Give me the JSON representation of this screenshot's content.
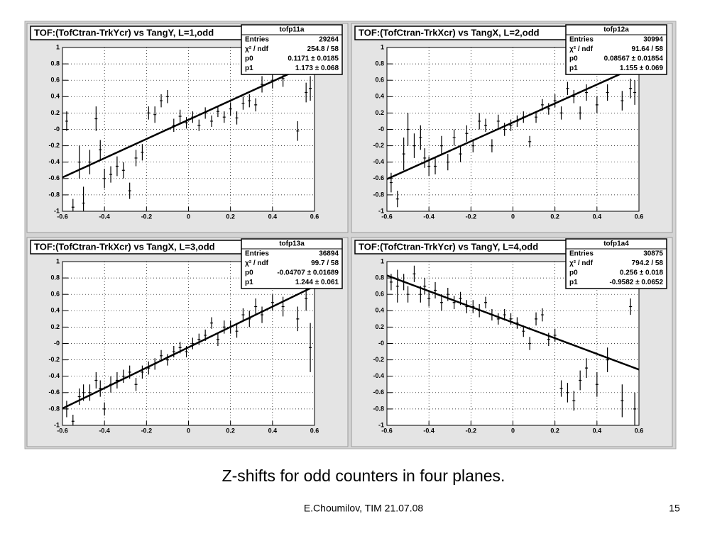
{
  "chart_data": [
    {
      "type": "scatter",
      "title": "TOF:(TofCtran-TrkYcr) vs TangY, L=1,odd",
      "stats_name": "tofp11a",
      "stats_labels": [
        "Entries",
        "χ² / ndf",
        "p0",
        "p1"
      ],
      "entries": 29264,
      "chi2": "254.8 / 58",
      "p0": {
        "value": 0.1171,
        "label": "0.1171 ± 0.0185"
      },
      "p1": {
        "value": 1.173,
        "label": "1.173 ± 0.068"
      },
      "xlim": [
        -0.6,
        0.6
      ],
      "ylim": [
        -1,
        1
      ],
      "grid": true,
      "color": "#000000",
      "xticks": [
        -0.6,
        -0.4,
        -0.2,
        0,
        0.2,
        0.4,
        0.6
      ],
      "yticks": [
        -1,
        -0.8,
        -0.6,
        -0.4,
        -0.2,
        {
          "value": 0,
          "label": "-0"
        },
        0.2,
        0.4,
        0.6,
        0.8,
        1
      ],
      "x": [
        -0.58,
        -0.55,
        -0.52,
        -0.5,
        -0.47,
        -0.44,
        -0.42,
        -0.4,
        -0.37,
        -0.34,
        -0.31,
        -0.28,
        -0.25,
        -0.22,
        -0.19,
        -0.16,
        -0.13,
        -0.1,
        -0.07,
        -0.04,
        -0.01,
        0.02,
        0.05,
        0.08,
        0.11,
        0.14,
        0.17,
        0.2,
        0.23,
        0.26,
        0.29,
        0.32,
        0.35,
        0.4,
        0.45,
        0.52,
        0.56,
        0.58
      ],
      "values": [
        0.1,
        -0.95,
        -0.4,
        -0.9,
        -0.4,
        0.13,
        -0.25,
        -0.6,
        -0.55,
        -0.45,
        -0.5,
        -0.75,
        -0.35,
        -0.28,
        0.2,
        0.18,
        0.35,
        0.4,
        0.05,
        0.16,
        0.08,
        0.15,
        0.05,
        0.2,
        0.1,
        0.22,
        0.15,
        0.25,
        0.14,
        0.32,
        0.35,
        0.3,
        0.55,
        0.6,
        0.62,
        -0.02,
        0.45,
        0.5
      ],
      "errors": [
        0.12,
        0.1,
        0.2,
        0.2,
        0.15,
        0.15,
        0.12,
        0.12,
        0.1,
        0.12,
        0.1,
        0.1,
        0.1,
        0.1,
        0.08,
        0.1,
        0.08,
        0.08,
        0.08,
        0.08,
        0.07,
        0.07,
        0.07,
        0.07,
        0.07,
        0.07,
        0.07,
        0.08,
        0.08,
        0.08,
        0.08,
        0.08,
        0.1,
        0.1,
        0.1,
        0.12,
        0.12,
        0.15
      ]
    },
    {
      "type": "scatter",
      "title": "TOF:(TofCtran-TrkXcr) vs TangX, L=2,odd",
      "stats_name": "tofp12a",
      "stats_labels": [
        "Entries",
        "χ² / ndf",
        "p0",
        "p1"
      ],
      "entries": 30994,
      "chi2": "91.64 / 58",
      "p0": {
        "value": 0.08567,
        "label": "0.08567 ± 0.01854"
      },
      "p1": {
        "value": 1.155,
        "label": "1.155 ± 0.069"
      },
      "xlim": [
        -0.6,
        0.6
      ],
      "ylim": [
        -1,
        1
      ],
      "grid": true,
      "color": "#000000",
      "xticks": [
        -0.6,
        -0.4,
        -0.2,
        0,
        0.2,
        0.4,
        0.6
      ],
      "yticks": [
        -1,
        -0.8,
        -0.6,
        -0.4,
        -0.2,
        {
          "value": 0,
          "label": "-0"
        },
        0.2,
        0.4,
        0.6,
        0.8,
        1
      ],
      "x": [
        -0.58,
        -0.55,
        -0.52,
        -0.5,
        -0.47,
        -0.44,
        -0.42,
        -0.4,
        -0.37,
        -0.34,
        -0.31,
        -0.28,
        -0.25,
        -0.22,
        -0.19,
        -0.16,
        -0.13,
        -0.1,
        -0.07,
        -0.04,
        -0.01,
        0.02,
        0.05,
        0.08,
        0.11,
        0.14,
        0.17,
        0.2,
        0.23,
        0.26,
        0.29,
        0.32,
        0.35,
        0.4,
        0.45,
        0.52,
        0.56,
        0.58
      ],
      "values": [
        -0.65,
        -0.85,
        -0.3,
        0.0,
        -0.2,
        -0.1,
        -0.35,
        -0.45,
        -0.45,
        -0.2,
        -0.4,
        -0.1,
        -0.3,
        -0.05,
        -0.2,
        0.1,
        0.05,
        -0.2,
        0.1,
        0.0,
        0.05,
        0.1,
        0.15,
        -0.15,
        0.15,
        0.3,
        0.25,
        0.35,
        0.2,
        0.5,
        0.4,
        0.2,
        0.45,
        0.3,
        0.45,
        0.35,
        0.5,
        0.45
      ],
      "errors": [
        0.12,
        0.1,
        0.2,
        0.2,
        0.15,
        0.15,
        0.12,
        0.12,
        0.1,
        0.12,
        0.1,
        0.1,
        0.1,
        0.1,
        0.08,
        0.1,
        0.08,
        0.08,
        0.08,
        0.08,
        0.07,
        0.07,
        0.07,
        0.07,
        0.07,
        0.07,
        0.07,
        0.08,
        0.08,
        0.08,
        0.08,
        0.08,
        0.1,
        0.1,
        0.1,
        0.12,
        0.12,
        0.15
      ]
    },
    {
      "type": "scatter",
      "title": "TOF:(TofCtran-TrkXcr) vs TangX, L=3,odd",
      "stats_name": "tofp13a",
      "stats_labels": [
        "Entries",
        "χ² / ndf",
        "p0",
        "p1"
      ],
      "entries": 36894,
      "chi2": "99.7 / 58",
      "p0": {
        "value": -0.04707,
        "label": "-0.04707 ± 0.01689"
      },
      "p1": {
        "value": 1.244,
        "label": "1.244 ± 0.061"
      },
      "xlim": [
        -0.6,
        0.6
      ],
      "ylim": [
        -1,
        1
      ],
      "grid": true,
      "color": "#000000",
      "xticks": [
        -0.6,
        -0.4,
        -0.2,
        0,
        0.2,
        0.4,
        0.6
      ],
      "yticks": [
        -1,
        -0.8,
        -0.6,
        -0.4,
        -0.2,
        {
          "value": 0,
          "label": "-0"
        },
        0.2,
        0.4,
        0.6,
        0.8,
        1
      ],
      "x": [
        -0.58,
        -0.55,
        -0.52,
        -0.5,
        -0.47,
        -0.44,
        -0.42,
        -0.4,
        -0.37,
        -0.34,
        -0.31,
        -0.28,
        -0.25,
        -0.22,
        -0.19,
        -0.16,
        -0.13,
        -0.1,
        -0.07,
        -0.04,
        -0.01,
        0.02,
        0.05,
        0.08,
        0.11,
        0.14,
        0.17,
        0.2,
        0.23,
        0.26,
        0.29,
        0.32,
        0.35,
        0.4,
        0.45,
        0.52,
        0.56,
        0.58
      ],
      "values": [
        -0.8,
        -0.95,
        -0.65,
        -0.6,
        -0.6,
        -0.45,
        -0.55,
        -0.8,
        -0.5,
        -0.45,
        -0.4,
        -0.35,
        -0.5,
        -0.35,
        -0.3,
        -0.25,
        -0.15,
        -0.2,
        -0.1,
        -0.05,
        -0.1,
        0.0,
        0.05,
        0.1,
        0.25,
        0.05,
        0.2,
        0.2,
        0.15,
        0.35,
        0.3,
        0.45,
        0.35,
        0.5,
        0.45,
        0.3,
        0.55,
        -0.05
      ],
      "errors": [
        0.1,
        0.08,
        0.1,
        0.1,
        0.1,
        0.1,
        0.1,
        0.08,
        0.1,
        0.1,
        0.08,
        0.08,
        0.08,
        0.08,
        0.08,
        0.07,
        0.07,
        0.07,
        0.07,
        0.07,
        0.07,
        0.07,
        0.07,
        0.07,
        0.07,
        0.08,
        0.08,
        0.08,
        0.08,
        0.08,
        0.1,
        0.1,
        0.1,
        0.1,
        0.12,
        0.15,
        0.15,
        0.3
      ]
    },
    {
      "type": "scatter",
      "title": "TOF:(TofCtran-TrkYcr) vs TangY, L=4,odd",
      "stats_name": "tofp1a4",
      "stats_labels": [
        "Entries",
        "χ² / ndf",
        "p0",
        "p1"
      ],
      "entries": 30875,
      "chi2": "794.2 / 58",
      "p0": {
        "value": 0.256,
        "label": "0.256 ± 0.018"
      },
      "p1": {
        "value": -0.9582,
        "label": "-0.9582 ± 0.0652"
      },
      "xlim": [
        -0.6,
        0.6
      ],
      "ylim": [
        -1,
        1
      ],
      "grid": true,
      "color": "#000000",
      "xticks": [
        -0.6,
        -0.4,
        -0.2,
        0,
        0.2,
        0.4,
        0.6
      ],
      "yticks": [
        -1,
        -0.8,
        -0.6,
        -0.4,
        -0.2,
        {
          "value": 0,
          "label": "-0"
        },
        0.2,
        0.4,
        0.6,
        0.8,
        1
      ],
      "x": [
        -0.58,
        -0.55,
        -0.52,
        -0.5,
        -0.47,
        -0.44,
        -0.42,
        -0.4,
        -0.37,
        -0.34,
        -0.31,
        -0.28,
        -0.25,
        -0.22,
        -0.19,
        -0.16,
        -0.13,
        -0.1,
        -0.07,
        -0.04,
        -0.01,
        0.02,
        0.05,
        0.08,
        0.11,
        0.14,
        0.17,
        0.2,
        0.23,
        0.26,
        0.29,
        0.32,
        0.35,
        0.4,
        0.45,
        0.52,
        0.56,
        0.58
      ],
      "values": [
        0.75,
        0.7,
        0.75,
        0.6,
        0.85,
        0.6,
        0.7,
        0.55,
        0.65,
        0.5,
        0.6,
        0.5,
        0.55,
        0.45,
        0.45,
        0.4,
        0.5,
        0.35,
        0.3,
        0.35,
        0.3,
        0.25,
        0.15,
        0.0,
        0.3,
        0.35,
        0.05,
        0.1,
        -0.55,
        -0.6,
        -0.7,
        -0.45,
        -0.3,
        -0.5,
        -0.2,
        -0.7,
        0.45,
        -0.8
      ],
      "errors": [
        0.1,
        0.2,
        0.1,
        0.1,
        0.1,
        0.1,
        0.1,
        0.1,
        0.1,
        0.1,
        0.08,
        0.08,
        0.08,
        0.08,
        0.08,
        0.08,
        0.07,
        0.07,
        0.07,
        0.07,
        0.07,
        0.07,
        0.07,
        0.08,
        0.08,
        0.08,
        0.08,
        0.08,
        0.1,
        0.12,
        0.12,
        0.12,
        0.12,
        0.15,
        0.15,
        0.2,
        0.1,
        0.2
      ]
    }
  ],
  "caption": "Z-shifts for odd counters in four planes.",
  "footer": "E.Choumilov, TIM 21.07.08",
  "page_number": 15
}
